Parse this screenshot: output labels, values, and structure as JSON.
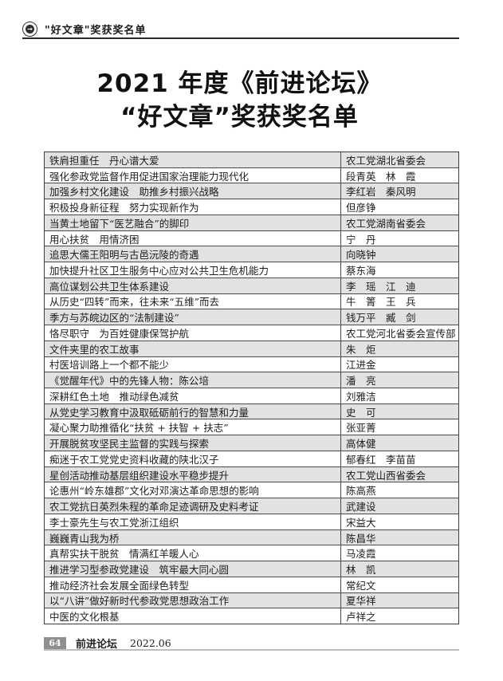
{
  "header": {
    "label": "\"好文章\"奖获奖名单",
    "icon": "circle-arrow-right-icon"
  },
  "title": {
    "line1": "2021 年度《前进论坛》",
    "line2": "“好文章”奖获奖名单"
  },
  "table": {
    "rows": [
      {
        "title": "铁肩担重任　丹心谱大爱",
        "author": "农工党湖北省委会"
      },
      {
        "title": "强化参政党监督作用促进国家治理能力现代化",
        "author": "段青英　林　霞"
      },
      {
        "title": "加强乡村文化建设　助推乡村振兴战略",
        "author": "李红岩　秦风明"
      },
      {
        "title": "积极投身新征程　努力实现新作为",
        "author": "但彦铮"
      },
      {
        "title": "当黄土地留下“医艺融合”的脚印",
        "author": "农工党湖南省委会"
      },
      {
        "title": "用心扶贫　用情济困",
        "author": "宁　丹"
      },
      {
        "title": "追思大儒王阳明与古邑沅陵的奇遇",
        "author": "向晓钟"
      },
      {
        "title": "加快提升社区卫生服务中心应对公共卫生危机能力",
        "author": "蔡东海"
      },
      {
        "title": "高位谋划公共卫生体系建设",
        "author": "李　瑶　江　迪"
      },
      {
        "title": "从历史“四转”而来，往未来“五维”而去",
        "author": "牛　箐　王　兵"
      },
      {
        "title": "季方与苏皖边区的“法制建设”",
        "author": "钱万平　臧　剑"
      },
      {
        "title": "恪尽职守　为百姓健康保驾护航",
        "author": "农工党河北省委会宣传部"
      },
      {
        "title": "文件夹里的农工故事",
        "author": "朱　炬"
      },
      {
        "title": "村医培训路上一个都不能少",
        "author": "江进金"
      },
      {
        "title": "《觉醒年代》中的先锋人物：陈公培",
        "author": "潘　亮"
      },
      {
        "title": "深耕红色土地　推动绿色减贫",
        "author": "刘雅洁"
      },
      {
        "title": "从党史学习教育中汲取砥砺前行的智慧和力量",
        "author": "史　可"
      },
      {
        "title": "凝心聚力助推循化“扶贫 + 扶智 + 扶志”",
        "author": "张亚菁"
      },
      {
        "title": "开展脱贫攻坚民主监督的实践与探索",
        "author": "高体健"
      },
      {
        "title": "痴迷于农工党党史资料收藏的陕北汉子",
        "author": "郁春红　李苗苗"
      },
      {
        "title": "星创活动推动基层组织建设水平稳步提升",
        "author": "农工党山西省委会"
      },
      {
        "title": "论惠州“岭东雄郡”文化对邓演达革命思想的影响",
        "author": "陈高燕"
      },
      {
        "title": "农工党抗日英烈朱程的革命足迹调研及史料考证",
        "author": "武建设"
      },
      {
        "title": "李士豪先生与农工党浙江组织",
        "author": "宋益大"
      },
      {
        "title": "巍巍青山我为桥",
        "author": "陈昌华"
      },
      {
        "title": "真帮实扶干脱贫　情满红羊暖人心",
        "author": "马凌霞"
      },
      {
        "title": "推进学习型参政党建设　筑牢最大同心圆",
        "author": "林　凯"
      },
      {
        "title": "推动经济社会发展全面绿色转型",
        "author": "常纪文"
      },
      {
        "title": "以“八讲”做好新时代参政党思想政治工作",
        "author": "夏华祥"
      },
      {
        "title": "中医的文化根基",
        "author": "卢祥之"
      }
    ]
  },
  "footer": {
    "page_number": "64",
    "journal": "前进论坛",
    "issue": "2022.06"
  },
  "colors": {
    "row_stripe": "#e2e2e2",
    "table_border": "#4a4a4a",
    "page_num_box": "#8f8f8f",
    "footer_rule": "#bdbdbd",
    "header_rule": "#2b2b2b"
  }
}
